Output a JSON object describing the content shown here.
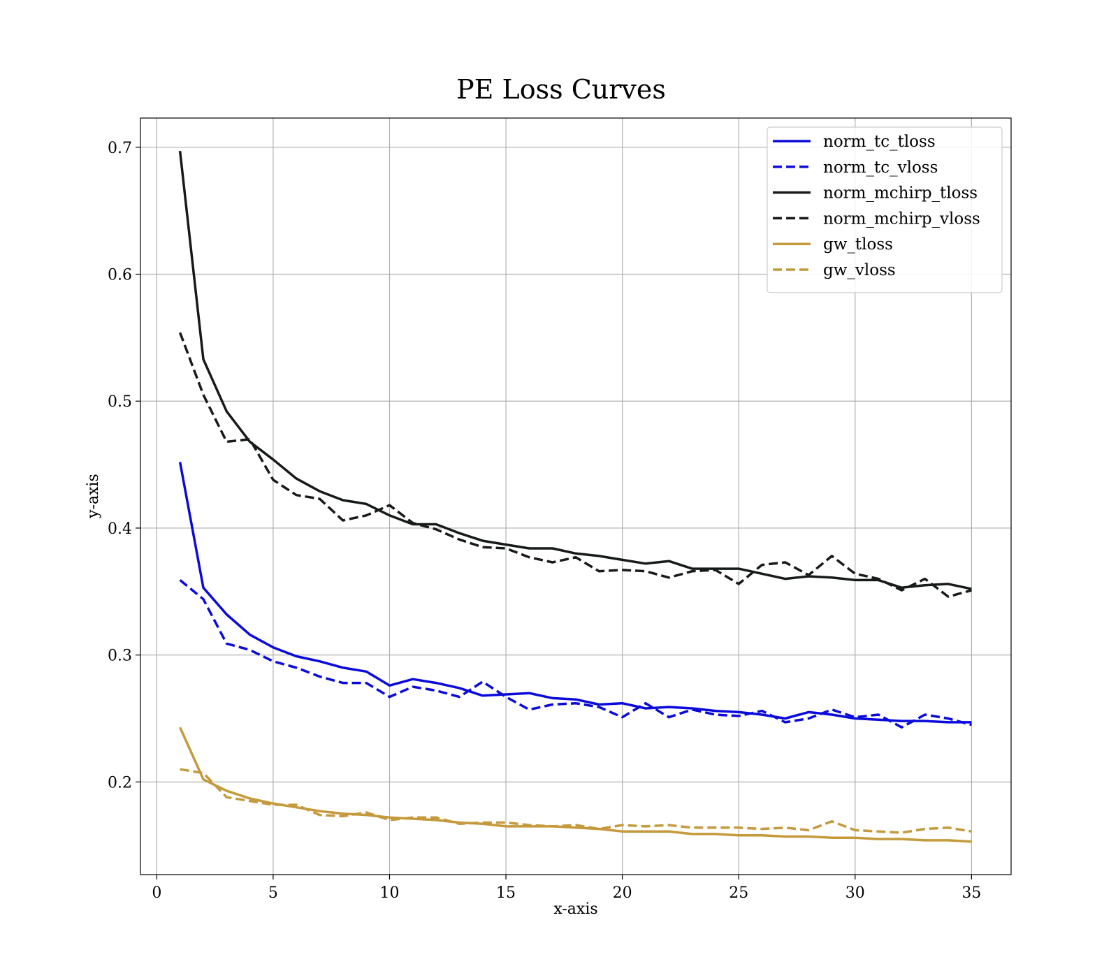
{
  "chart_data": {
    "type": "line",
    "title": "PE Loss Curves",
    "xlabel": "x-axis",
    "ylabel": "y-axis",
    "xlim": [
      -0.7,
      36.7
    ],
    "ylim": [
      0.127,
      0.723
    ],
    "xticks": [
      0,
      5,
      10,
      15,
      20,
      25,
      30,
      35
    ],
    "yticks": [
      0.2,
      0.3,
      0.4,
      0.5,
      0.6,
      0.7
    ],
    "xtick_labels": [
      "0",
      "5",
      "10",
      "15",
      "20",
      "25",
      "30",
      "35"
    ],
    "ytick_labels": [
      "0.2",
      "0.3",
      "0.4",
      "0.5",
      "0.6",
      "0.7"
    ],
    "grid": true,
    "legend_position": "top-right",
    "x": [
      1,
      2,
      3,
      4,
      5,
      6,
      7,
      8,
      9,
      10,
      11,
      12,
      13,
      14,
      15,
      16,
      17,
      18,
      19,
      20,
      21,
      22,
      23,
      24,
      25,
      26,
      27,
      28,
      29,
      30,
      31,
      32,
      33,
      34,
      35
    ],
    "series": [
      {
        "name": "norm_tc_tloss",
        "color": "#0a0adc",
        "style": "solid",
        "values": [
          0.452,
          0.353,
          0.332,
          0.316,
          0.306,
          0.299,
          0.295,
          0.29,
          0.287,
          0.276,
          0.281,
          0.278,
          0.274,
          0.268,
          0.269,
          0.27,
          0.266,
          0.265,
          0.261,
          0.262,
          0.258,
          0.259,
          0.258,
          0.256,
          0.255,
          0.253,
          0.25,
          0.255,
          0.253,
          0.25,
          0.249,
          0.248,
          0.248,
          0.247,
          0.247
        ]
      },
      {
        "name": "norm_tc_vloss",
        "color": "#0a0adc",
        "style": "dashed",
        "values": [
          0.359,
          0.344,
          0.309,
          0.304,
          0.295,
          0.29,
          0.283,
          0.278,
          0.278,
          0.267,
          0.275,
          0.272,
          0.267,
          0.279,
          0.267,
          0.257,
          0.261,
          0.262,
          0.259,
          0.251,
          0.262,
          0.251,
          0.257,
          0.253,
          0.252,
          0.256,
          0.247,
          0.25,
          0.257,
          0.251,
          0.253,
          0.243,
          0.253,
          0.25,
          0.245
        ]
      },
      {
        "name": "norm_mchirp_tloss",
        "color": "#161a18",
        "style": "solid",
        "values": [
          0.697,
          0.533,
          0.492,
          0.468,
          0.454,
          0.439,
          0.429,
          0.422,
          0.419,
          0.41,
          0.403,
          0.403,
          0.396,
          0.39,
          0.387,
          0.384,
          0.384,
          0.38,
          0.378,
          0.375,
          0.372,
          0.374,
          0.368,
          0.368,
          0.368,
          0.364,
          0.36,
          0.362,
          0.361,
          0.359,
          0.359,
          0.353,
          0.355,
          0.356,
          0.352
        ]
      },
      {
        "name": "norm_mchirp_vloss",
        "color": "#161a18",
        "style": "dashed",
        "values": [
          0.554,
          0.505,
          0.468,
          0.47,
          0.438,
          0.426,
          0.423,
          0.406,
          0.41,
          0.418,
          0.404,
          0.399,
          0.391,
          0.385,
          0.384,
          0.377,
          0.373,
          0.377,
          0.366,
          0.367,
          0.366,
          0.361,
          0.366,
          0.367,
          0.356,
          0.371,
          0.373,
          0.363,
          0.378,
          0.364,
          0.36,
          0.351,
          0.36,
          0.346,
          0.351
        ]
      },
      {
        "name": "gw_tloss",
        "color": "#c49a3c",
        "style": "solid",
        "values": [
          0.243,
          0.202,
          0.193,
          0.187,
          0.183,
          0.18,
          0.177,
          0.175,
          0.174,
          0.172,
          0.171,
          0.17,
          0.168,
          0.167,
          0.165,
          0.165,
          0.165,
          0.164,
          0.163,
          0.161,
          0.161,
          0.161,
          0.159,
          0.159,
          0.158,
          0.158,
          0.157,
          0.157,
          0.156,
          0.156,
          0.155,
          0.155,
          0.154,
          0.154,
          0.153
        ]
      },
      {
        "name": "gw_vloss",
        "color": "#c49a3c",
        "style": "dashed",
        "values": [
          0.21,
          0.207,
          0.188,
          0.185,
          0.182,
          0.182,
          0.174,
          0.173,
          0.176,
          0.17,
          0.172,
          0.172,
          0.167,
          0.168,
          0.168,
          0.166,
          0.165,
          0.166,
          0.163,
          0.166,
          0.165,
          0.166,
          0.164,
          0.164,
          0.164,
          0.163,
          0.164,
          0.162,
          0.169,
          0.162,
          0.161,
          0.16,
          0.163,
          0.164,
          0.161
        ]
      }
    ]
  }
}
